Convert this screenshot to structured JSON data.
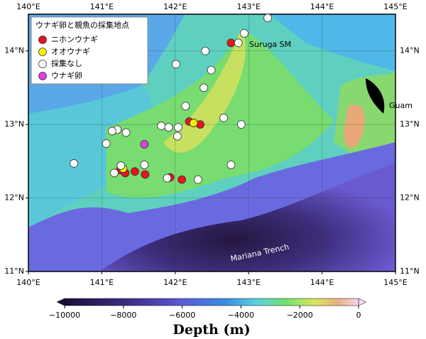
{
  "map": {
    "xlim": [
      140,
      145
    ],
    "ylim": [
      11,
      14.5
    ],
    "xticks": [
      {
        "value": 140,
        "label": "140°E"
      },
      {
        "value": 141,
        "label": "141°E"
      },
      {
        "value": 142,
        "label": "142°E"
      },
      {
        "value": 143,
        "label": "143°E"
      },
      {
        "value": 144,
        "label": "144°E"
      },
      {
        "value": 145,
        "label": "145°E"
      }
    ],
    "yticks": [
      {
        "value": 11,
        "label": "11°N"
      },
      {
        "value": 12,
        "label": "12°N"
      },
      {
        "value": 13,
        "label": "13°N"
      },
      {
        "value": 14,
        "label": "14°N"
      }
    ],
    "legend_title": "ウナギ卵と親魚の採集地点",
    "series": [
      {
        "name": "ニホンウナギ",
        "color": "#e8141c",
        "lon": [
          142.76,
          142.19,
          142.34,
          141.25,
          141.32,
          141.45,
          141.59,
          141.93,
          142.09
        ],
        "lat": [
          14.11,
          13.04,
          13.0,
          12.38,
          12.34,
          12.36,
          12.32,
          12.28,
          12.25
        ]
      },
      {
        "name": "オオウナギ",
        "color": "#f5f000",
        "lon": [
          142.25,
          141.29
        ],
        "lat": [
          13.02,
          12.4
        ]
      },
      {
        "name": "採集なし",
        "color": "#ffffff",
        "lon": [
          143.26,
          142.94,
          142.86,
          142.41,
          142.49,
          142.01,
          142.39,
          142.14,
          141.21,
          141.14,
          141.33,
          141.06,
          141.81,
          141.91,
          142.04,
          142.03,
          142.66,
          142.9,
          140.62,
          141.26,
          141.17,
          141.58,
          141.89,
          142.31,
          142.76
        ],
        "lat": [
          14.45,
          14.24,
          14.11,
          14.0,
          13.74,
          13.82,
          13.5,
          13.25,
          12.93,
          12.91,
          12.89,
          12.74,
          12.98,
          12.96,
          12.96,
          12.84,
          13.09,
          13.0,
          12.47,
          12.44,
          12.34,
          12.45,
          12.27,
          12.25,
          12.45
        ]
      },
      {
        "name": "ウナギ卵",
        "color": "#e040e0",
        "lon": [
          141.58
        ],
        "lat": [
          12.73
        ]
      }
    ],
    "annotations": [
      "Suruga SM",
      "Guam",
      "Mariana Trench"
    ],
    "colorbar": {
      "label": "Depth (m)",
      "lim": [
        -10000,
        0
      ],
      "ticks": [
        {
          "value": -10000,
          "label": "−10000"
        },
        {
          "value": -8000,
          "label": "−8000"
        },
        {
          "value": -6000,
          "label": "−6000"
        },
        {
          "value": -4000,
          "label": "−4000"
        },
        {
          "value": -2000,
          "label": "−2000"
        },
        0
      ]
    }
  }
}
